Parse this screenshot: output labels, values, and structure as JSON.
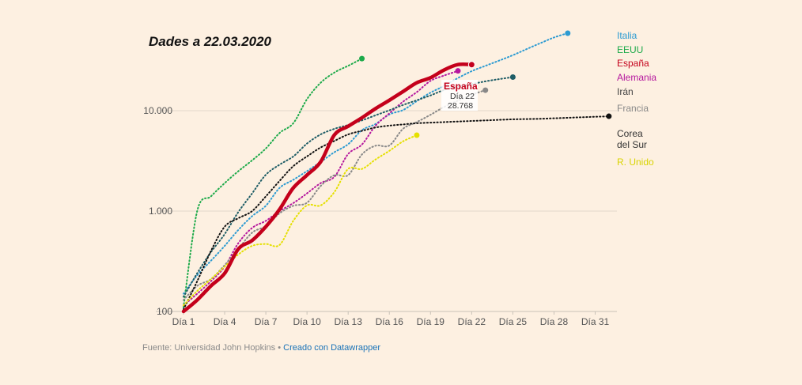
{
  "title": "Dades a 22.03.2020",
  "footer": {
    "source": "Fuente: Universidad John Hopkins",
    "separator": "•",
    "credit": "Creado con Datawrapper"
  },
  "tooltip": {
    "series": "España",
    "day": "Día 22",
    "value": "28.768"
  },
  "chart_data": {
    "type": "line",
    "title": "Dades a 22.03.2020",
    "xlabel": "",
    "ylabel": "",
    "yscale": "log",
    "ylim": [
      100,
      70000
    ],
    "xlim": [
      1,
      32
    ],
    "xticks": [
      1,
      4,
      7,
      10,
      13,
      16,
      19,
      22,
      25,
      28,
      31
    ],
    "xtick_labels": [
      "Día 1",
      "Día 4",
      "Día 7",
      "Día 10",
      "Día 13",
      "Día 16",
      "Día 19",
      "Día 22",
      "Día 25",
      "Día 28",
      "Día 31"
    ],
    "yticks": [
      100,
      1000,
      10000
    ],
    "ytick_labels": [
      "100",
      "1.000",
      "10.000"
    ],
    "grid": true,
    "legend": "right",
    "series": [
      {
        "name": "Italia",
        "color": "#2d9bd2",
        "style": "dotted",
        "width": 2,
        "x": [
          1,
          2,
          3,
          4,
          5,
          6,
          7,
          8,
          9,
          10,
          11,
          12,
          13,
          14,
          15,
          16,
          17,
          18,
          19,
          20,
          21,
          22,
          23,
          24,
          25,
          26,
          27,
          28,
          29
        ],
        "y": [
          150,
          230,
          320,
          450,
          650,
          890,
          1130,
          1700,
          2050,
          2500,
          3090,
          3860,
          4640,
          6390,
          7380,
          9170,
          10150,
          12460,
          15110,
          17660,
          21160,
          24750,
          27980,
          31510,
          35710,
          41040,
          47020,
          53580,
          59140
        ]
      },
      {
        "name": "EEUU",
        "color": "#1daa4a",
        "style": "dotted",
        "width": 2,
        "x": [
          1,
          2,
          3,
          4,
          5,
          6,
          7,
          8,
          9,
          10,
          11,
          12,
          13,
          14
        ],
        "y": [
          110,
          1000,
          1400,
          1900,
          2500,
          3200,
          4200,
          6000,
          7500,
          13000,
          19000,
          24000,
          28000,
          33000
        ]
      },
      {
        "name": "España",
        "color": "#c4001b",
        "style": "solid",
        "width": 4.5,
        "x": [
          1,
          2,
          3,
          4,
          5,
          6,
          7,
          8,
          9,
          10,
          11,
          12,
          13,
          14,
          15,
          16,
          17,
          18,
          19,
          20,
          21,
          22
        ],
        "y": [
          100,
          130,
          180,
          240,
          420,
          510,
          700,
          1040,
          1700,
          2280,
          3100,
          5750,
          7000,
          8500,
          10500,
          12700,
          15500,
          19000,
          21300,
          25500,
          28768,
          28768
        ]
      },
      {
        "name": "Alemania",
        "color": "#b5179e",
        "style": "dotted",
        "width": 2,
        "x": [
          1,
          2,
          3,
          4,
          5,
          6,
          7,
          8,
          9,
          10,
          11,
          12,
          13,
          14,
          15,
          16,
          17,
          18,
          19,
          20,
          21
        ],
        "y": [
          115,
          150,
          200,
          280,
          480,
          680,
          800,
          1000,
          1200,
          1500,
          1900,
          2200,
          3700,
          4600,
          7100,
          9400,
          12300,
          15300,
          19800,
          22400,
          24900
        ]
      },
      {
        "name": "Irán",
        "color": "#1f5d66",
        "style": "dotted",
        "width": 2,
        "x": [
          1,
          2,
          3,
          4,
          5,
          6,
          7,
          8,
          9,
          10,
          11,
          12,
          13,
          14,
          15,
          16,
          17,
          18,
          19,
          20,
          21,
          22,
          23,
          24,
          25
        ],
        "y": [
          140,
          240,
          390,
          590,
          980,
          1500,
          2300,
          2900,
          3500,
          4700,
          5800,
          6600,
          7200,
          8000,
          9000,
          10100,
          11400,
          12700,
          14200,
          16100,
          17400,
          18400,
          19600,
          20600,
          21600
        ]
      },
      {
        "name": "Francia",
        "color": "#888888",
        "style": "dotted",
        "width": 2,
        "x": [
          1,
          2,
          3,
          4,
          5,
          6,
          7,
          8,
          9,
          10,
          11,
          12,
          13,
          14,
          15,
          16,
          17,
          18,
          19,
          20,
          21,
          22,
          23
        ],
        "y": [
          130,
          180,
          210,
          290,
          420,
          610,
          710,
          950,
          1130,
          1210,
          1780,
          2280,
          2280,
          3660,
          4480,
          4500,
          6600,
          7700,
          9100,
          10900,
          12600,
          14400,
          16000
        ]
      },
      {
        "name": "Corea del Sur",
        "color": "#111111",
        "style": "dotted",
        "width": 2,
        "x": [
          1,
          2,
          3,
          4,
          5,
          6,
          7,
          8,
          9,
          10,
          11,
          12,
          13,
          14,
          15,
          16,
          17,
          18,
          19,
          20,
          21,
          22,
          23,
          24,
          25,
          26,
          27,
          28,
          29,
          30,
          31,
          32
        ],
        "y": [
          105,
          200,
          400,
          700,
          850,
          1000,
          1400,
          2000,
          2800,
          3500,
          4300,
          5000,
          5800,
          6300,
          6800,
          7100,
          7300,
          7500,
          7600,
          7700,
          7800,
          7900,
          8000,
          8100,
          8200,
          8250,
          8300,
          8400,
          8500,
          8600,
          8700,
          8800
        ]
      },
      {
        "name": "R. Unido",
        "color": "#e5e000",
        "style": "dotted",
        "width": 2,
        "x": [
          1,
          2,
          3,
          4,
          5,
          6,
          7,
          8,
          9,
          10,
          11,
          12,
          13,
          14,
          15,
          16,
          17,
          18
        ],
        "y": [
          115,
          160,
          210,
          280,
          370,
          450,
          470,
          460,
          800,
          1140,
          1140,
          1550,
          2630,
          2630,
          3270,
          3980,
          4950,
          5700
        ]
      }
    ],
    "legend_entries": [
      {
        "label": "Italia",
        "color": "#2d9bd2"
      },
      {
        "label": "EEUU",
        "color": "#1daa4a"
      },
      {
        "label": "España",
        "color": "#c4001b"
      },
      {
        "label": "Alemania",
        "color": "#b5179e"
      },
      {
        "label": "Irán",
        "color": "#444444"
      },
      {
        "label": "Francia",
        "color": "#888888"
      },
      {
        "label": "Corea del Sur",
        "lines": [
          "Corea",
          "del Sur"
        ],
        "color": "#333333"
      },
      {
        "label": "R. Unido",
        "color": "#d9d400"
      }
    ]
  }
}
